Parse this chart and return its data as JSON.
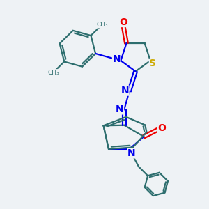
{
  "bg_color": "#eef2f5",
  "bond_color": "#2d6e6e",
  "N_color": "#0000ee",
  "O_color": "#ee0000",
  "S_color": "#ccaa00",
  "line_width": 1.6,
  "font_size": 10,
  "figsize": [
    3.0,
    3.0
  ],
  "dpi": 100,
  "xlim": [
    0,
    10
  ],
  "ylim": [
    0,
    10
  ]
}
